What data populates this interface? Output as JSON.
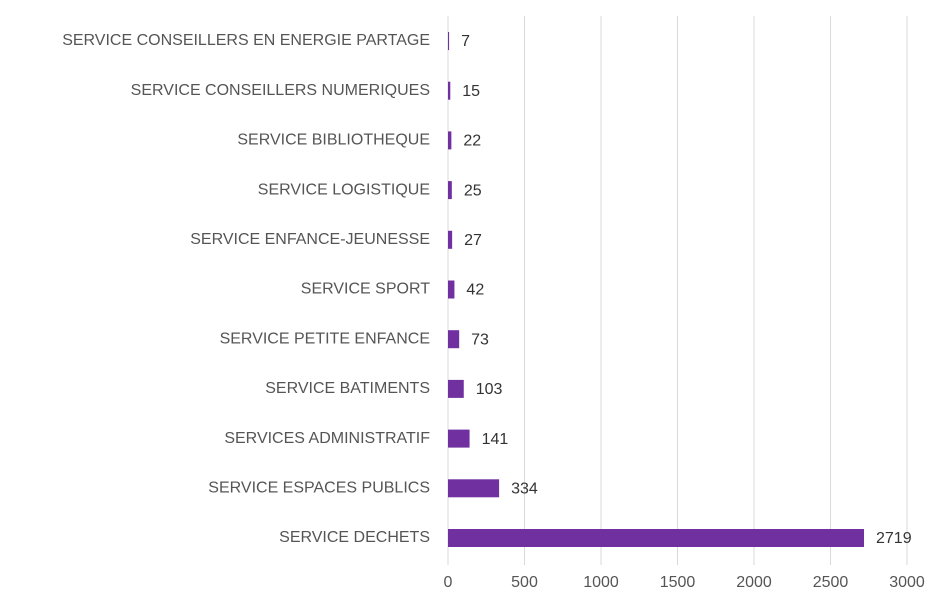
{
  "chart_data": {
    "type": "barh",
    "categories": [
      "SERVICE CONSEILLERS EN ENERGIE PARTAGE",
      "SERVICE CONSEILLERS NUMERIQUES",
      "SERVICE BIBLIOTHEQUE",
      "SERVICE LOGISTIQUE",
      "SERVICE ENFANCE-JEUNESSE",
      "SERVICE SPORT",
      "SERVICE PETITE ENFANCE",
      "SERVICE BATIMENTS",
      "SERVICES ADMINISTRATIF",
      "SERVICE ESPACES PUBLICS",
      "SERVICE DECHETS"
    ],
    "values": [
      7,
      15,
      22,
      25,
      27,
      42,
      73,
      103,
      141,
      334,
      2719
    ],
    "color": "#7030a0",
    "xlim": [
      0,
      3000
    ],
    "xticks": [
      0,
      500,
      1000,
      1500,
      2000,
      2500,
      3000
    ],
    "grid": true
  }
}
